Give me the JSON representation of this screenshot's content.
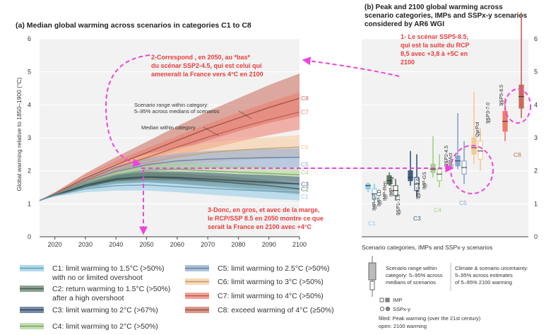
{
  "colors": {
    "C1": "#8fcbe6",
    "C2": "#5d7a66",
    "C3": "#3f5e80",
    "C4": "#a7d28d",
    "C5": "#8aa7cf",
    "C6": "#f6c99a",
    "C7": "#ef7a6c",
    "C8": "#c96a5a",
    "annot": "#e83d3d",
    "arrow": "#ee44dd",
    "axis": "#444444",
    "grid": "#d9d9d9"
  },
  "chart_data": [
    {
      "type": "area",
      "panel": "a",
      "title": "(a) Median global warming across scenarios in categories C1 to C8",
      "ylabel": "Global warming relative to 1850–1900 (°C)",
      "xlim": [
        2015,
        2100
      ],
      "ylim": [
        0,
        6
      ],
      "xticks": [
        2020,
        2030,
        2040,
        2050,
        2060,
        2070,
        2080,
        2090,
        2100
      ],
      "yticks": [
        0,
        1,
        2,
        3,
        4,
        5,
        6
      ],
      "grid": true,
      "x": [
        2015,
        2020,
        2030,
        2040,
        2050,
        2060,
        2070,
        2080,
        2090,
        2100
      ],
      "series": [
        {
          "name": "C1",
          "median": [
            1.1,
            1.25,
            1.45,
            1.55,
            1.57,
            1.52,
            1.47,
            1.42,
            1.38,
            1.35
          ],
          "low": [
            1.1,
            1.22,
            1.35,
            1.4,
            1.4,
            1.35,
            1.28,
            1.22,
            1.15,
            1.1
          ],
          "high": [
            1.1,
            1.28,
            1.55,
            1.68,
            1.72,
            1.7,
            1.66,
            1.62,
            1.6,
            1.58
          ]
        },
        {
          "name": "C2",
          "median": [
            1.1,
            1.26,
            1.52,
            1.72,
            1.8,
            1.77,
            1.7,
            1.62,
            1.55,
            1.45
          ],
          "low": [
            1.1,
            1.23,
            1.44,
            1.6,
            1.65,
            1.6,
            1.52,
            1.45,
            1.37,
            1.28
          ],
          "high": [
            1.1,
            1.3,
            1.62,
            1.85,
            1.95,
            1.93,
            1.87,
            1.8,
            1.72,
            1.62
          ]
        },
        {
          "name": "C3",
          "median": [
            1.1,
            1.27,
            1.56,
            1.76,
            1.82,
            1.8,
            1.75,
            1.7,
            1.65,
            1.6
          ],
          "low": [
            1.1,
            1.24,
            1.48,
            1.62,
            1.65,
            1.6,
            1.55,
            1.5,
            1.45,
            1.4
          ],
          "high": [
            1.1,
            1.3,
            1.65,
            1.9,
            1.98,
            1.98,
            1.95,
            1.9,
            1.87,
            1.82
          ]
        },
        {
          "name": "C4",
          "median": [
            1.1,
            1.28,
            1.62,
            1.88,
            2.02,
            2.05,
            2.0,
            1.96,
            1.92,
            1.88
          ],
          "low": [
            1.1,
            1.25,
            1.52,
            1.73,
            1.82,
            1.84,
            1.8,
            1.76,
            1.72,
            1.68
          ],
          "high": [
            1.1,
            1.31,
            1.72,
            2.03,
            2.2,
            2.24,
            2.2,
            2.16,
            2.12,
            2.08
          ]
        },
        {
          "name": "C5",
          "median": [
            1.1,
            1.29,
            1.68,
            1.98,
            2.18,
            2.3,
            2.35,
            2.38,
            2.4,
            2.41
          ],
          "low": [
            1.1,
            1.26,
            1.56,
            1.8,
            1.95,
            2.03,
            2.07,
            2.09,
            2.1,
            2.1
          ],
          "high": [
            1.1,
            1.32,
            1.8,
            2.15,
            2.38,
            2.52,
            2.6,
            2.64,
            2.66,
            2.68
          ]
        },
        {
          "name": "C6",
          "median": [
            1.1,
            1.29,
            1.7,
            2.02,
            2.25,
            2.42,
            2.55,
            2.63,
            2.68,
            2.72
          ],
          "low": [
            1.1,
            1.26,
            1.58,
            1.85,
            2.02,
            2.15,
            2.25,
            2.32,
            2.37,
            2.4
          ],
          "high": [
            1.1,
            1.33,
            1.83,
            2.22,
            2.5,
            2.7,
            2.85,
            2.95,
            3.02,
            3.08
          ]
        },
        {
          "name": "C7",
          "median": [
            1.1,
            1.3,
            1.72,
            2.1,
            2.4,
            2.72,
            3.02,
            3.3,
            3.55,
            3.78
          ],
          "low": [
            1.1,
            1.27,
            1.6,
            1.92,
            2.16,
            2.42,
            2.66,
            2.88,
            3.08,
            3.25
          ],
          "high": [
            1.1,
            1.34,
            1.86,
            2.3,
            2.68,
            3.05,
            3.42,
            3.76,
            4.08,
            4.38
          ]
        },
        {
          "name": "C8",
          "median": [
            1.1,
            1.31,
            1.78,
            2.18,
            2.55,
            2.92,
            3.28,
            3.6,
            3.92,
            4.2
          ],
          "low": [
            1.1,
            1.28,
            1.65,
            2.0,
            2.3,
            2.62,
            2.92,
            3.2,
            3.45,
            3.65
          ],
          "high": [
            1.1,
            1.35,
            1.92,
            2.42,
            2.88,
            3.35,
            3.8,
            4.2,
            4.6,
            4.95
          ]
        }
      ],
      "end_labels": [
        "C8",
        "C7",
        "C6",
        "C5",
        "C4",
        "C3",
        "C2",
        "C1"
      ],
      "annotations": {
        "range_note": [
          "Scenario range within category:",
          "5–95% across medians of scenarios"
        ],
        "median_note": "Median within category"
      }
    },
    {
      "type": "box",
      "panel": "b",
      "title": [
        "(b) Peak and 2100 global warming across",
        "scenario categories, IMPs and SSPx-y scenarios",
        "considered by AR6 WGI"
      ],
      "ylim": [
        0,
        6
      ],
      "yticks": [
        0,
        1,
        2,
        3,
        4,
        5,
        6
      ],
      "categories": [
        {
          "name": "C1",
          "filled": true,
          "p5": 1.35,
          "p25": 1.45,
          "median": 1.55,
          "p75": 1.6,
          "p95": 1.65
        },
        {
          "name": "C1",
          "filled": false,
          "p5": 1.0,
          "p25": 1.15,
          "median": 1.3,
          "p75": 1.45,
          "p95": 1.6
        },
        {
          "name": "C2",
          "filled": true,
          "p5": 1.55,
          "p25": 1.6,
          "median": 1.7,
          "p75": 1.85,
          "p95": 1.95
        },
        {
          "name": "C2",
          "filled": false,
          "p5": 1.1,
          "p25": 1.25,
          "median": 1.4,
          "p75": 1.55,
          "p95": 1.75
        },
        {
          "name": "C3",
          "filled": true,
          "p5": 1.55,
          "p25": 1.7,
          "median": 1.8,
          "p75": 2.0,
          "p95": 2.6
        },
        {
          "name": "C3",
          "filled": false,
          "p5": 1.2,
          "p25": 1.4,
          "median": 1.6,
          "p75": 1.8,
          "p95": 2.5
        },
        {
          "name": "C4",
          "filled": true,
          "p5": 1.8,
          "p25": 1.95,
          "median": 2.05,
          "p75": 2.2,
          "p95": 3.05
        },
        {
          "name": "C4",
          "filled": false,
          "p5": 1.5,
          "p25": 1.7,
          "median": 1.9,
          "p75": 2.05,
          "p95": 2.5
        },
        {
          "name": "C5",
          "filled": true,
          "p5": 2.05,
          "p25": 2.15,
          "median": 2.3,
          "p75": 2.45,
          "p95": 3.75
        },
        {
          "name": "C5",
          "filled": false,
          "p5": 1.6,
          "p25": 1.9,
          "median": 2.1,
          "p75": 2.3,
          "p95": 2.9
        },
        {
          "name": "C6",
          "filled": true,
          "p5": 2.2,
          "p25": 2.5,
          "median": 2.7,
          "p75": 3.0,
          "p95": 4.4
        },
        {
          "name": "C6",
          "filled": false,
          "p5": 2.0,
          "p25": 2.35,
          "median": 2.6,
          "p75": 2.9,
          "p95": 3.3
        },
        {
          "name": "C7",
          "filled": true,
          "p5": 2.9,
          "p25": 3.2,
          "median": 3.5,
          "p75": 3.8,
          "p95": 4.2
        },
        {
          "name": "C8",
          "filled": true,
          "p5": 3.6,
          "p25": 3.9,
          "median": 4.25,
          "p75": 4.6,
          "p95": 6.8
        }
      ],
      "imp_labels": [
        {
          "label": "IMP-SP",
          "value": 1.35
        },
        {
          "label": "IMP-LD",
          "value": 1.4
        },
        {
          "label": "IMP-Ren",
          "value": 1.5
        },
        {
          "label": "SSP1-1.9",
          "value": 1.4
        },
        {
          "label": "IMP-Neg",
          "value": 1.6
        },
        {
          "label": "SSP1-2.6",
          "value": 1.8
        },
        {
          "label": "IMP-GS",
          "value": 1.9
        },
        {
          "label": "SSP2-4.5",
          "value": 2.7
        },
        {
          "label": "ModAct",
          "value": 2.8
        },
        {
          "label": "CurPol",
          "value": 3.5
        },
        {
          "label": "SSP3-7.0",
          "value": 3.6
        },
        {
          "label": "SSP5-8.5",
          "value": 4.4
        }
      ]
    }
  ],
  "overlay_notes": {
    "note1": [
      "1- Le scénar SSP5-8.5,",
      "qui est la suite du RCP",
      "8,5 avec +3,8 à +5C en",
      "2100"
    ],
    "note2": [
      "2-Correspond , en 2050,  au *bas*",
      "du scénar SSP2-4.5, qui est celui qui",
      "amenerait la France vers 4°C en 2100"
    ],
    "note3": [
      "3-Donc, en gros, et avec de la marge,",
      "le RCP/SSP 8.5 en 2050  montre ce que",
      "serait la France en 2100 avec +4°C"
    ]
  },
  "legend": {
    "items": [
      {
        "key": "C1",
        "lines": [
          "C1: limit warming to 1.5°C (>50%)",
          "with no or limited overshoot"
        ]
      },
      {
        "key": "C2",
        "lines": [
          "C2: return warming to 1.5°C (>50%)",
          "after a high overshoot"
        ]
      },
      {
        "key": "C3",
        "lines": [
          "C3: limit warming to 2°C (>67%)"
        ]
      },
      {
        "key": "C4",
        "lines": [
          "C4: limit warming to 2°C (>50%)"
        ]
      },
      {
        "key": "C5",
        "lines": [
          "C5: limit warming to 2.5°C (>50%)"
        ]
      },
      {
        "key": "C6",
        "lines": [
          "C6: limit warming to 3°C (>50%)"
        ]
      },
      {
        "key": "C7",
        "lines": [
          "C7: limit warming to 4°C (>50%)"
        ]
      },
      {
        "key": "C8",
        "lines": [
          "C8: exceed warming of 4°C (≥50%)"
        ]
      }
    ]
  },
  "key_panel": {
    "title": "Scenario categories, IMPs and SSPx-y scenarios",
    "range_text": [
      "Scenario range within",
      "category: 5–95% across",
      "medians of scenarios"
    ],
    "uncert_text": [
      "Climate & scenario uncertainty:",
      "5–95% across estimates",
      "of 5–95% 2100 warming"
    ],
    "imp": "IMP",
    "ssp": "SSPx-y",
    "filled": "filled: Peak warming (over the 21st century)",
    "open": "open: 2100 warming"
  }
}
